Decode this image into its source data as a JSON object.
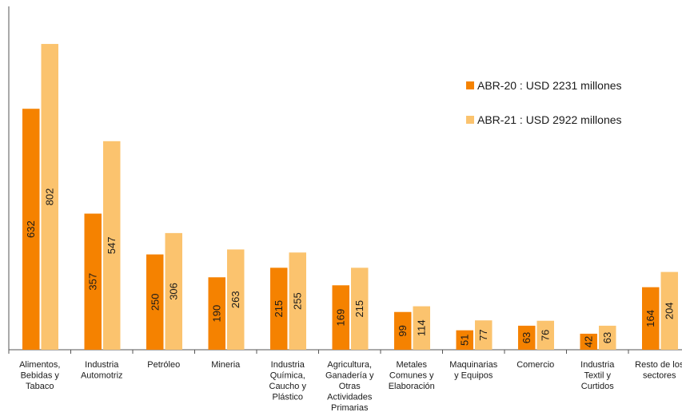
{
  "chart_data": {
    "type": "bar",
    "categories": [
      [
        "Alimentos,",
        "Bebidas y",
        "Tabaco"
      ],
      [
        "Industria",
        "Automotriz"
      ],
      [
        "Petróleo"
      ],
      [
        "Mineria"
      ],
      [
        "Industria",
        "Química,",
        "Caucho y",
        "Plástico"
      ],
      [
        "Agricultura,",
        "Ganadería y",
        "Otras",
        "Actividades",
        "Primarias"
      ],
      [
        "Metales",
        "Comunes y",
        "Elaboración"
      ],
      [
        "Maquinarias",
        "y Equipos"
      ],
      [
        "Comercio"
      ],
      [
        "Industria",
        "Textil y",
        "Curtidos"
      ],
      [
        "Resto de los",
        "sectores"
      ]
    ],
    "series": [
      {
        "name": "ABR-20 : USD 2231 millones",
        "color": "#f58200",
        "values": [
          632,
          357,
          250,
          190,
          215,
          169,
          99,
          51,
          63,
          42,
          164
        ]
      },
      {
        "name": "ABR-21 : USD 2922 millones",
        "color": "#fbc36e",
        "values": [
          802,
          547,
          306,
          263,
          255,
          215,
          114,
          77,
          76,
          63,
          204
        ]
      }
    ],
    "ylim": [
      0,
      880
    ],
    "legend_position": "top-right",
    "grid": false
  }
}
